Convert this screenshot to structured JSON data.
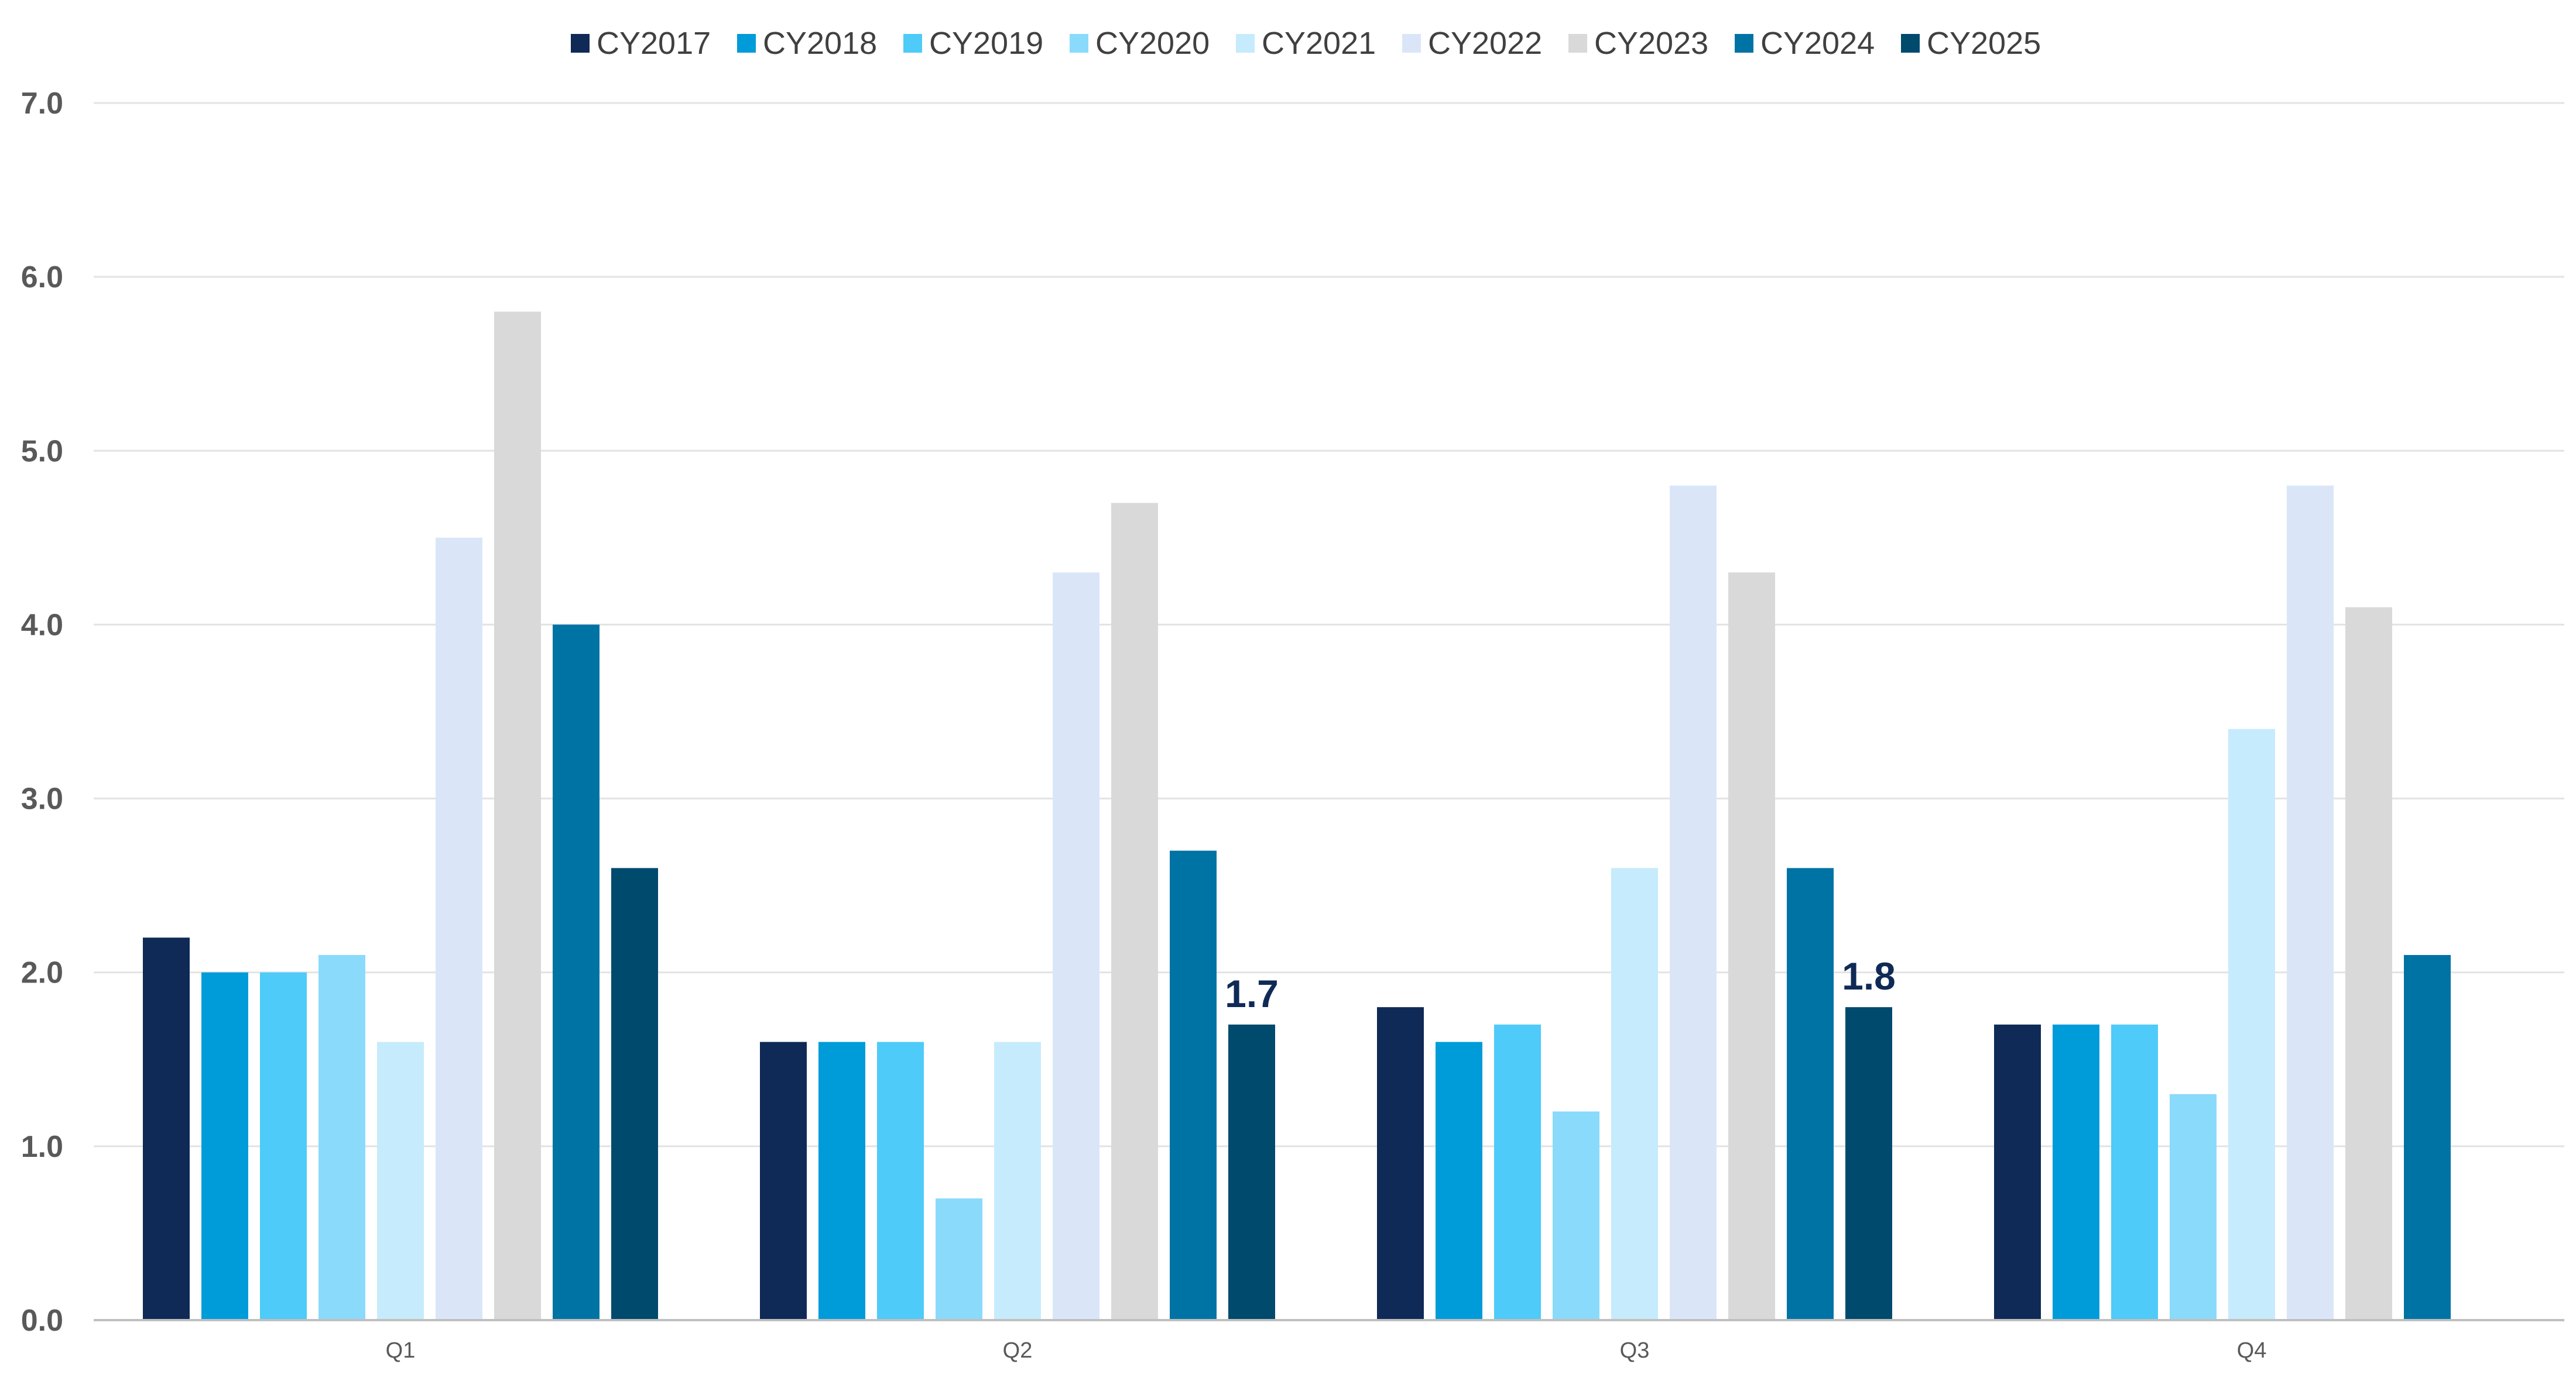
{
  "chart_data": {
    "type": "bar",
    "title": "",
    "xlabel": "",
    "ylabel": "",
    "categories": [
      "Q1",
      "Q2",
      "Q3",
      "Q4"
    ],
    "ylim": [
      0,
      7
    ],
    "y_ticks": [
      "0.0",
      "1.0",
      "2.0",
      "3.0",
      "4.0",
      "5.0",
      "6.0",
      "7.0"
    ],
    "grid": true,
    "legend_position": "top-center",
    "series": [
      {
        "name": "CY2017",
        "color": "#0f2a56",
        "values": [
          2.2,
          1.6,
          1.8,
          1.7
        ]
      },
      {
        "name": "CY2018",
        "color": "#009bd9",
        "values": [
          2.0,
          1.6,
          1.6,
          1.7
        ]
      },
      {
        "name": "CY2019",
        "color": "#4ecbf8",
        "values": [
          2.0,
          1.6,
          1.7,
          1.7
        ]
      },
      {
        "name": "CY2020",
        "color": "#8adafb",
        "values": [
          2.1,
          0.7,
          1.2,
          1.3
        ]
      },
      {
        "name": "CY2021",
        "color": "#c6ebfc",
        "values": [
          1.6,
          1.6,
          2.6,
          3.4
        ]
      },
      {
        "name": "CY2022",
        "color": "#dae6f8",
        "values": [
          4.5,
          4.3,
          4.8,
          4.8
        ]
      },
      {
        "name": "CY2023",
        "color": "#d9d9d9",
        "values": [
          5.8,
          4.7,
          4.3,
          4.1
        ]
      },
      {
        "name": "CY2024",
        "color": "#0073a5",
        "values": [
          4.0,
          2.7,
          2.6,
          2.1
        ]
      },
      {
        "name": "CY2025",
        "color": "#004a6d",
        "values": [
          2.6,
          1.7,
          1.8,
          null
        ]
      }
    ],
    "annotations": [
      {
        "series": "CY2025",
        "category": "Q2",
        "text": "1.7"
      },
      {
        "series": "CY2025",
        "category": "Q3",
        "text": "1.8"
      }
    ]
  }
}
